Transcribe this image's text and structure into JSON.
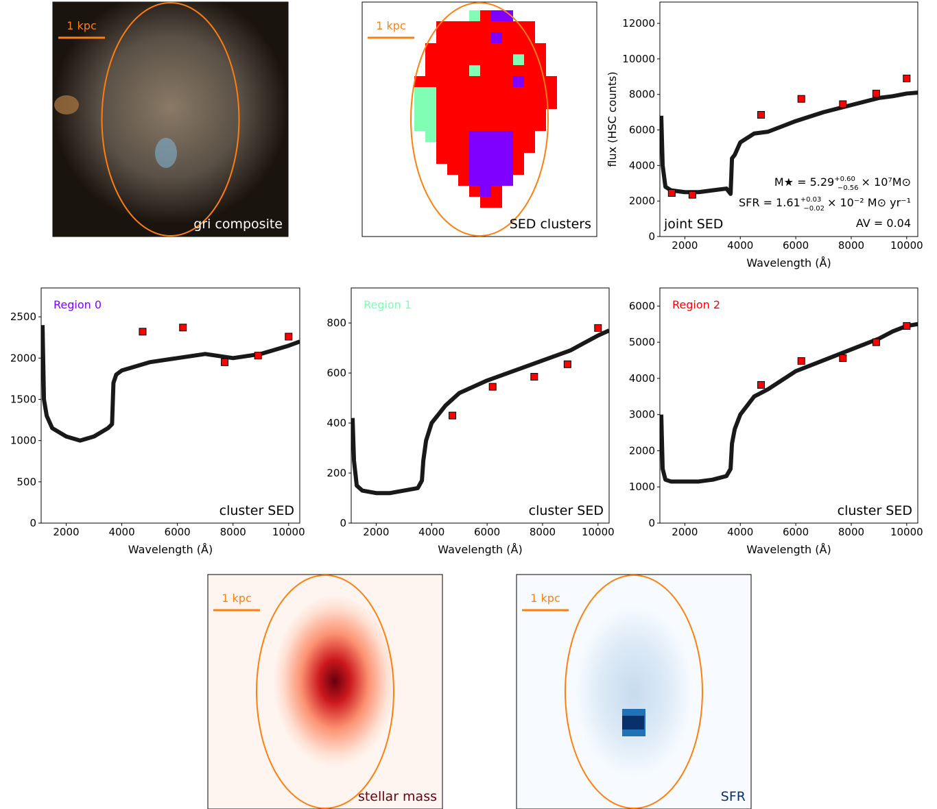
{
  "chart_data": [
    {
      "type": "image",
      "label": "gri composite",
      "scale_label": "1 kpc",
      "label_color": "#ffffff",
      "background": "#1a140e",
      "map": "gri"
    },
    {
      "type": "image",
      "label": "SED clusters",
      "scale_label": "1 kpc",
      "label_color": "#000000",
      "background": "#ffffff",
      "map": "clusters"
    },
    {
      "type": "sed",
      "label": "joint SED",
      "xlabel": "Wavelength (Å)",
      "ylabel": "flux (HSC counts)",
      "xlim": [
        1100,
        10400
      ],
      "ylim": [
        0,
        13200
      ],
      "xticks": [
        2000,
        4000,
        6000,
        8000,
        10000
      ],
      "yticks": [
        0,
        2000,
        4000,
        6000,
        8000,
        10000,
        12000
      ],
      "series": [
        {
          "name": "model",
          "color": "#000000",
          "x": [
            1150,
            1200,
            1300,
            1500,
            2000,
            2500,
            3000,
            3500,
            3650,
            3700,
            3800,
            4000,
            4500,
            5000,
            6000,
            7000,
            8000,
            9000,
            9500,
            10000,
            10400
          ],
          "values": [
            6800,
            4000,
            2800,
            2600,
            2500,
            2500,
            2600,
            2700,
            2400,
            4400,
            4600,
            5300,
            5800,
            5900,
            6500,
            7000,
            7400,
            7800,
            7900,
            8050,
            8100
          ]
        },
        {
          "name": "observed",
          "color": "#ff0000",
          "x": [
            1528,
            2271,
            4750,
            6200,
            7700,
            8900,
            10000
          ],
          "values": [
            2450,
            2350,
            6850,
            7750,
            7450,
            8050,
            8900
          ]
        }
      ],
      "annotations": [
        {
          "main": "M★ = 5.29",
          "upper": "+0.60",
          "lower": "−0.56",
          "rest": "× 10⁷M⊙"
        },
        {
          "main": "SFR = 1.61",
          "upper": "+0.03",
          "lower": "−0.02",
          "rest": "× 10⁻² M⊙ yr⁻¹"
        },
        {
          "main": "AV = 0.04"
        }
      ]
    },
    {
      "type": "sed",
      "label": "cluster SED",
      "title": "Region 0",
      "title_color": "#7f00ff",
      "xlabel": "Wavelength (Å)",
      "xlim": [
        1100,
        10400
      ],
      "ylim": [
        0,
        2850
      ],
      "xticks": [
        2000,
        4000,
        6000,
        8000,
        10000
      ],
      "yticks": [
        0,
        500,
        1000,
        1500,
        2000,
        2500
      ],
      "series": [
        {
          "name": "model",
          "color": "#000000",
          "x": [
            1150,
            1200,
            1300,
            1500,
            2000,
            2500,
            3000,
            3500,
            3650,
            3700,
            3800,
            4000,
            4500,
            5000,
            6000,
            7000,
            8000,
            9000,
            9500,
            10000,
            10400
          ],
          "values": [
            2400,
            1500,
            1300,
            1150,
            1050,
            1000,
            1050,
            1150,
            1200,
            1700,
            1800,
            1850,
            1900,
            1950,
            2000,
            2050,
            2000,
            2050,
            2100,
            2150,
            2200
          ]
        },
        {
          "name": "observed",
          "color": "#ff0000",
          "x": [
            4750,
            6200,
            7700,
            8900,
            10000
          ],
          "values": [
            2320,
            2370,
            1950,
            2030,
            2260
          ]
        }
      ]
    },
    {
      "type": "sed",
      "label": "cluster SED",
      "title": "Region 1",
      "title_color": "#80ffb4",
      "xlabel": "Wavelength (Å)",
      "xlim": [
        1100,
        10400
      ],
      "ylim": [
        0,
        940
      ],
      "xticks": [
        2000,
        4000,
        6000,
        8000,
        10000
      ],
      "yticks": [
        0,
        200,
        400,
        600,
        800
      ],
      "series": [
        {
          "name": "model",
          "color": "#000000",
          "x": [
            1150,
            1200,
            1300,
            1500,
            2000,
            2500,
            3000,
            3500,
            3650,
            3700,
            3800,
            4000,
            4500,
            5000,
            6000,
            7000,
            8000,
            9000,
            9500,
            10000,
            10400
          ],
          "values": [
            420,
            250,
            150,
            130,
            120,
            120,
            130,
            140,
            170,
            250,
            330,
            400,
            470,
            520,
            570,
            610,
            650,
            690,
            720,
            750,
            770
          ]
        },
        {
          "name": "observed",
          "color": "#ff0000",
          "x": [
            4750,
            6200,
            7700,
            8900,
            10000
          ],
          "values": [
            430,
            545,
            585,
            635,
            780
          ]
        }
      ]
    },
    {
      "type": "sed",
      "label": "cluster SED",
      "title": "Region 2",
      "title_color": "#ff0000",
      "xlabel": "Wavelength (Å)",
      "xlim": [
        1100,
        10400
      ],
      "ylim": [
        0,
        6500
      ],
      "xticks": [
        2000,
        4000,
        6000,
        8000,
        10000
      ],
      "yticks": [
        0,
        1000,
        2000,
        3000,
        4000,
        5000,
        6000
      ],
      "series": [
        {
          "name": "model",
          "color": "#000000",
          "x": [
            1150,
            1200,
            1300,
            1500,
            2000,
            2500,
            3000,
            3500,
            3650,
            3700,
            3800,
            4000,
            4500,
            5000,
            6000,
            7000,
            8000,
            9000,
            9500,
            10000,
            10400
          ],
          "values": [
            3000,
            1500,
            1200,
            1150,
            1150,
            1150,
            1200,
            1300,
            1500,
            2200,
            2600,
            3000,
            3500,
            3700,
            4200,
            4500,
            4800,
            5100,
            5300,
            5450,
            5500
          ]
        },
        {
          "name": "observed",
          "color": "#ff0000",
          "x": [
            4750,
            6200,
            7700,
            8900,
            10000
          ],
          "values": [
            3820,
            4480,
            4560,
            5000,
            5450
          ]
        }
      ]
    },
    {
      "type": "image",
      "label": "stellar mass",
      "scale_label": "1 kpc",
      "label_color": "#67000d",
      "background": "#fff5f0",
      "map": "mass"
    },
    {
      "type": "image",
      "label": "SFR",
      "scale_label": "1 kpc",
      "label_color": "#08306b",
      "background": "#f7fbff",
      "map": "sfr"
    }
  ]
}
